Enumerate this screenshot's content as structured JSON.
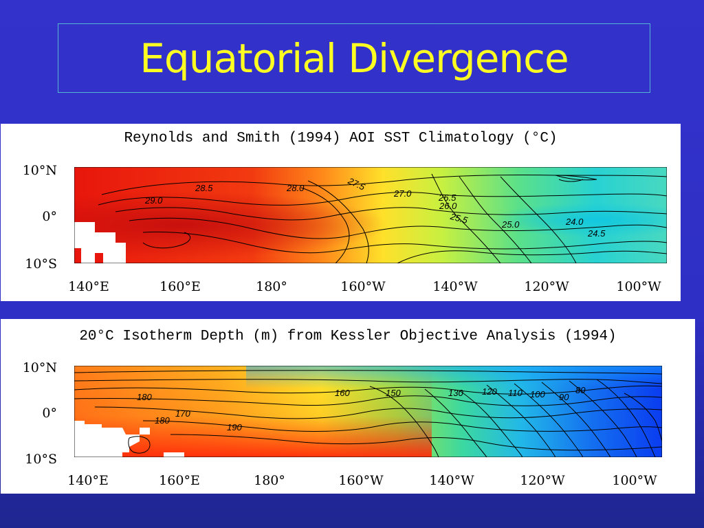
{
  "slide": {
    "title": "Equatorial Divergence"
  },
  "panels": [
    {
      "title": "Reynolds and Smith (1994) AOI SST Climatology (°C)",
      "y_labels": [
        "10°N",
        "0°",
        "10°S"
      ],
      "x_labels": [
        "140°E",
        "160°E",
        "180°",
        "160°W",
        "140°W",
        "120°W",
        "100°W"
      ],
      "contour_labels": [
        "28.5",
        "28.0",
        "27.5",
        "27.0",
        "29.0",
        "26.5",
        "26.0",
        "25.5",
        "25.0",
        "24.0",
        "24.5"
      ]
    },
    {
      "title": "20°C Isotherm Depth (m) from Kessler Objective Analysis (1994)",
      "y_labels": [
        "10°N",
        "0°",
        "10°S"
      ],
      "x_labels": [
        "140°E",
        "160°E",
        "180°",
        "160°W",
        "140°W",
        "120°W",
        "100°W"
      ],
      "contour_labels": [
        "180",
        "170",
        "180",
        "190",
        "160",
        "150",
        "130",
        "120",
        "110",
        "100",
        "90",
        "80"
      ]
    }
  ],
  "colors": {
    "background": "#3333cc",
    "title_text": "#ffff22",
    "title_border": "#55b6d2"
  }
}
